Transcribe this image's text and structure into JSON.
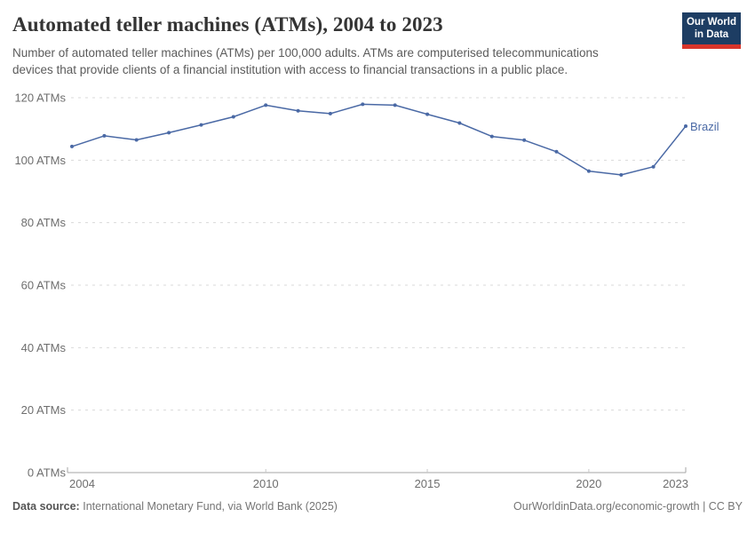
{
  "header": {
    "title": "Automated teller machines (ATMs), 2004 to 2023",
    "subtitle_line1": "Number of automated teller machines (ATMs) per 100,000 adults. ATMs are computerised telecommunications",
    "subtitle_line2": "devices that provide clients of a financial institution with access to financial transactions in a public place.",
    "logo": {
      "line1": "Our World",
      "line2": "in Data"
    }
  },
  "chart_data": {
    "type": "line",
    "title": "Automated teller machines (ATMs), 2004 to 2023",
    "xlabel": "",
    "ylabel": "",
    "unit": "ATMs",
    "x": [
      2004,
      2005,
      2006,
      2007,
      2008,
      2009,
      2010,
      2011,
      2012,
      2013,
      2014,
      2015,
      2016,
      2017,
      2018,
      2019,
      2020,
      2021,
      2022,
      2023
    ],
    "series": [
      {
        "name": "Brazil",
        "color": "#4a69a5",
        "values": [
          104.4,
          107.8,
          106.5,
          108.8,
          111.3,
          113.9,
          117.6,
          115.8,
          114.9,
          117.9,
          117.6,
          114.7,
          111.9,
          107.6,
          106.4,
          102.7,
          96.5,
          95.3,
          97.9,
          110.9
        ]
      }
    ],
    "ylim": [
      0,
      120
    ],
    "yticks": [
      0,
      20,
      40,
      60,
      80,
      100,
      120
    ],
    "ytick_suffix": " ATMs",
    "xticks": [
      2004,
      2010,
      2015,
      2020,
      2023
    ],
    "grid": "dashed-horizontal",
    "legend_position": "end-of-line",
    "entity_label": "Brazil"
  },
  "footer": {
    "source_label": "Data source:",
    "source_text": "International Monetary Fund, via World Bank (2025)",
    "link_text": "OurWorldinData.org/economic-growth | CC BY"
  },
  "colors": {
    "line": "#4a69a5",
    "grid": "#dadada",
    "axis": "#a5a5a5",
    "minor_tick": "#c8c8c8",
    "tick_text": "#6e6e6e",
    "logo_bg": "#1d3d63",
    "logo_stripe": "#d8352b"
  }
}
